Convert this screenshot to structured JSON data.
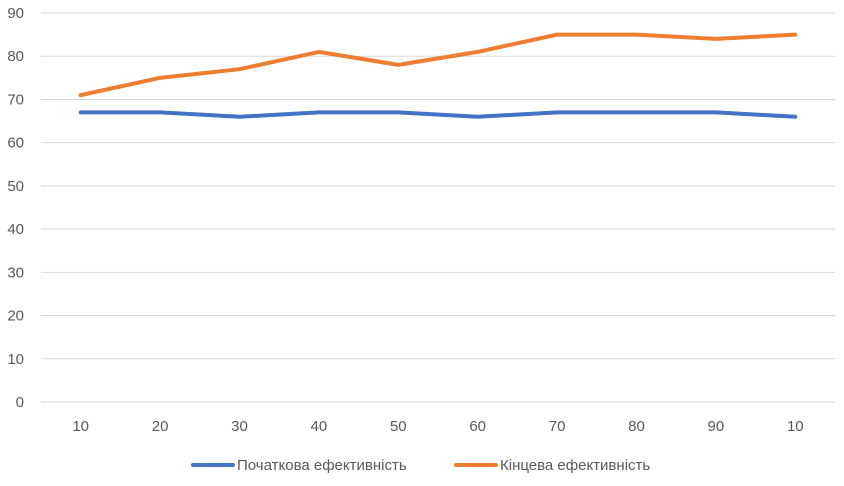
{
  "chart_data": {
    "type": "line",
    "categories": [
      "10",
      "20",
      "30",
      "40",
      "50",
      "60",
      "70",
      "80",
      "90",
      "10"
    ],
    "series": [
      {
        "name": "Початкова ефективність",
        "color": "#4472C4",
        "values": [
          67,
          67,
          66,
          67,
          67,
          66,
          67,
          67,
          67,
          66
        ]
      },
      {
        "name": "Кінцева ефективність",
        "color": "#ED7D31",
        "values": [
          71,
          75,
          77,
          81,
          78,
          81,
          85,
          85,
          84,
          85
        ]
      }
    ],
    "ylim": [
      0,
      90
    ],
    "yticks": [
      "0",
      "10",
      "20",
      "30",
      "40",
      "50",
      "60",
      "70",
      "80",
      "90"
    ],
    "grid": true,
    "gridColor": "#D9D9D9",
    "legend": "bottom"
  }
}
